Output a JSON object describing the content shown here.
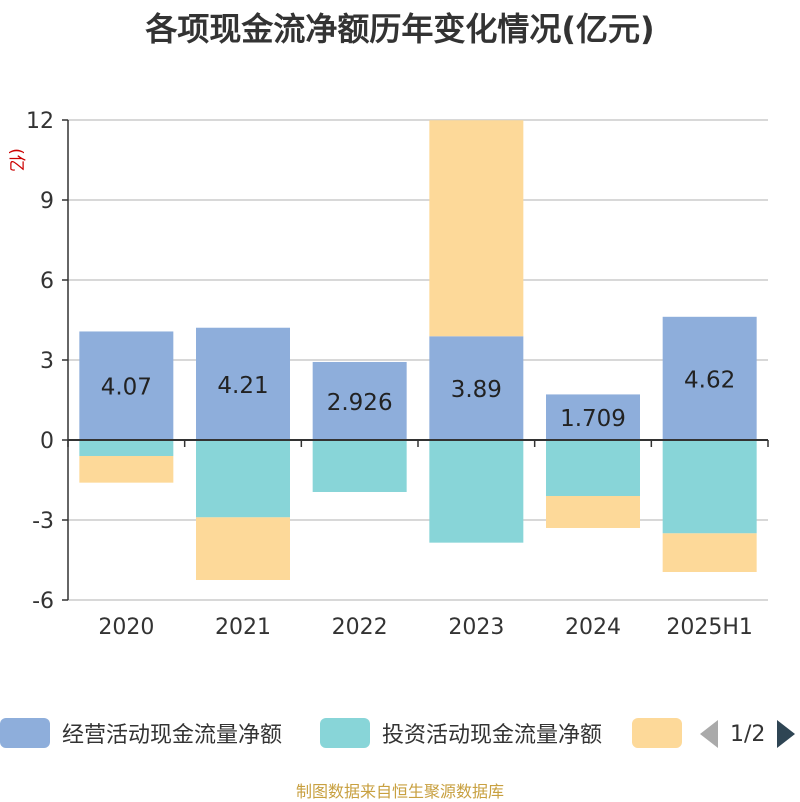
{
  "title": "各项现金流净额历年变化情况(亿元)",
  "unit_label": "(亿元)",
  "source": "制图数据来自恒生聚源数据库",
  "legend": {
    "pager_text": "1/2",
    "items": [
      {
        "label": "经营活动现金流量净额",
        "color": "#8eaedb"
      },
      {
        "label": "投资活动现金流量净额",
        "color": "#88d5d8"
      },
      {
        "label": "",
        "color": "#fdd999"
      }
    ]
  },
  "chart_data": {
    "type": "bar",
    "stacked": true,
    "categories": [
      "2020",
      "2021",
      "2022",
      "2023",
      "2024",
      "2025H1"
    ],
    "ylim": [
      -6,
      12
    ],
    "yticks": [
      -6,
      -3,
      0,
      3,
      6,
      9,
      12
    ],
    "ylabel": "(亿元)",
    "grid": true,
    "series": [
      {
        "name": "经营活动现金流量净额",
        "color": "#8eaedb",
        "values": [
          4.07,
          4.21,
          2.926,
          3.89,
          1.709,
          4.62
        ],
        "data_labels": [
          "4.07",
          "4.21",
          "2.926",
          "3.89",
          "1.709",
          "4.62"
        ]
      },
      {
        "name": "投资活动现金流量净额",
        "color": "#88d5d8",
        "values": [
          -0.6,
          -2.9,
          -1.95,
          -3.85,
          -2.1,
          -3.5
        ]
      },
      {
        "name": "",
        "color": "#fdd999",
        "values": [
          -1.0,
          -2.35,
          0,
          8.1,
          -1.2,
          -1.45
        ]
      }
    ]
  }
}
